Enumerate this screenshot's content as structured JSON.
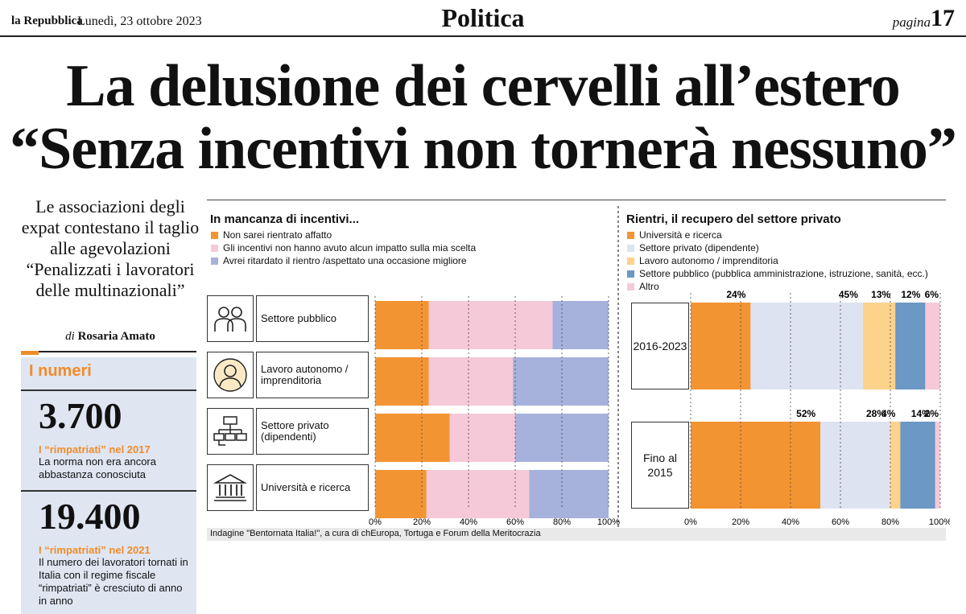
{
  "masthead": {
    "paper": "la Repubblica",
    "date": "Lunedì, 23 ottobre 2023",
    "section": "Politica",
    "page_label": "pagina",
    "page_number": "17"
  },
  "article": {
    "headline_line1": "La delusione dei cervelli all’estero",
    "headline_line2": "“Senza incentivi non tornerà nessuno”",
    "deck": "Le associazioni degli expat contestano il taglio alle agevolazioni “Penalizzati i lavoratori delle multinazionali”",
    "byline_prefix": "di",
    "byline_author": "Rosaria Amato"
  },
  "numbers": {
    "title": "I numeri",
    "items": [
      {
        "value": "3.700",
        "label": "I “rimpatriati” nel 2017",
        "text": "La norma non era ancora abbastanza conosciuta"
      },
      {
        "value": "19.400",
        "label": "I “rimpatriati” nel 2021",
        "text": "Il numero dei lavoratori tornati in Italia con il regime fiscale “rimpatriati” è cresciuto di anno in anno"
      }
    ]
  },
  "source": "Indagine \"Bentornata Italia!\", a cura di chEuropa, Tortuga e Forum della Meritocrazia",
  "colors": {
    "orange": "#f39433",
    "pink": "#f6c9d9",
    "lavender": "#a6b1dc",
    "light_blue": "#dde3f1",
    "yellow": "#fdd28b",
    "steel_blue": "#6b98c4",
    "numbers_bg": "#dfe6f2"
  },
  "chart_data": [
    {
      "type": "bar",
      "orientation": "horizontal",
      "stacked": true,
      "title": "In mancanza di incentivi...",
      "categories": [
        "Settore pubblico",
        "Lavoro autonomo / imprenditoria",
        "Settore privato (dipendenti)",
        "Università e ricerca"
      ],
      "category_icons": [
        "two-people-icon",
        "worker-portrait-icon",
        "org-chart-icon",
        "university-building-icon"
      ],
      "series": [
        {
          "name": "Non sarei rientrato affatto",
          "color": "#f39433",
          "values": [
            23,
            23,
            32,
            22
          ]
        },
        {
          "name": "Gli incentivi non hanno avuto alcun impatto sulla mia scelta",
          "color": "#f6c9d9",
          "values": [
            53,
            36,
            28,
            44
          ]
        },
        {
          "name": "Avrei ritardato il rientro /aspettato una occasione migliore",
          "color": "#a6b1dc",
          "values": [
            24,
            41,
            40,
            34
          ]
        }
      ],
      "xticks": [
        "0%",
        "20%",
        "40%",
        "60%",
        "80%",
        "100%"
      ],
      "xlim": [
        0,
        100
      ],
      "grid": true,
      "legend": "top-left"
    },
    {
      "type": "bar",
      "orientation": "horizontal",
      "stacked": true,
      "title": "Rientri, il recupero del settore privato",
      "categories": [
        "2016-2023",
        "Fino al 2015"
      ],
      "series": [
        {
          "name": "Università e ricerca",
          "color": "#f39433",
          "values": [
            24,
            52
          ],
          "labels": [
            "24%",
            "52%"
          ]
        },
        {
          "name": "Settore privato (dipendente)",
          "color": "#dde3f1",
          "values": [
            45,
            28
          ],
          "labels": [
            "45%",
            "28%"
          ]
        },
        {
          "name": "Lavoro autonomo / imprenditoria",
          "color": "#fdd28b",
          "values": [
            13,
            4
          ],
          "labels": [
            "13%",
            "4%"
          ]
        },
        {
          "name": "Settore pubblico (pubblica amministrazione, istruzione, sanità, ecc.)",
          "color": "#6b98c4",
          "values": [
            12,
            14
          ],
          "labels": [
            "12%",
            "14%"
          ]
        },
        {
          "name": "Altro",
          "color": "#f6c9d9",
          "values": [
            6,
            2
          ],
          "labels": [
            "6%",
            "2%"
          ]
        }
      ],
      "xticks": [
        "0%",
        "20%",
        "40%",
        "60%",
        "80%",
        "100%"
      ],
      "xlim": [
        0,
        100
      ],
      "grid": true,
      "legend": "top-left"
    }
  ]
}
